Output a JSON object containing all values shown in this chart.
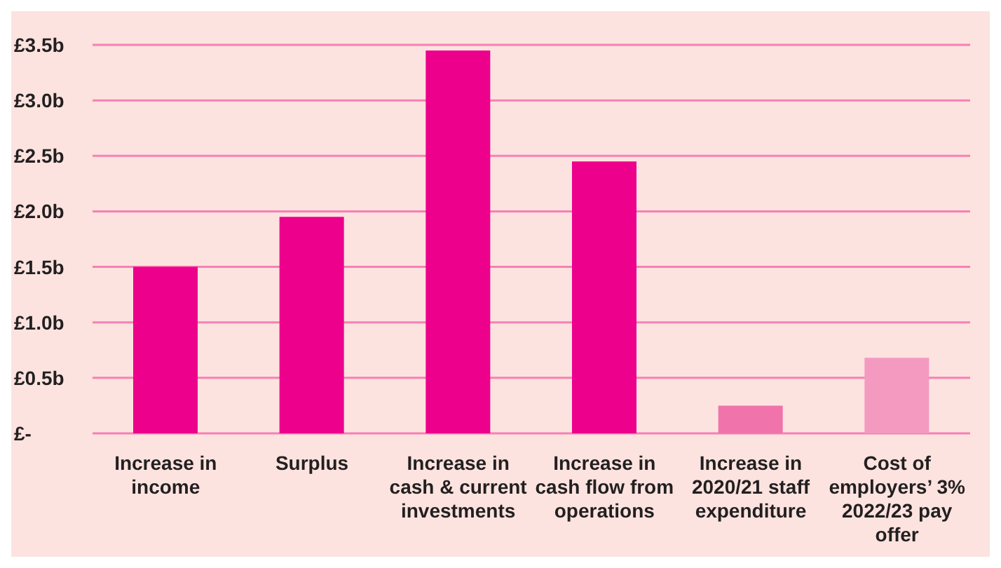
{
  "chart_data": {
    "type": "bar",
    "categories": [
      "Increase in income",
      "Surplus",
      "Increase in cash & current investments",
      "Increase in cash flow from operations",
      "Increase in 2020/21 staff expenditure",
      "Cost of employers’ 3% 2022/23 pay offer"
    ],
    "values": [
      1.5,
      1.95,
      3.45,
      2.45,
      0.25,
      0.68
    ],
    "colors": [
      "#ec008c",
      "#ec008c",
      "#ec008c",
      "#ec008c",
      "#f073ab",
      "#f49ac1"
    ],
    "ylim": [
      0,
      3.5
    ],
    "yticks": [
      {
        "value": 0,
        "label": "£-"
      },
      {
        "value": 0.5,
        "label": "£0.5b"
      },
      {
        "value": 1,
        "label": "£1.0b"
      },
      {
        "value": 1.5,
        "label": "£1.5b"
      },
      {
        "value": 2,
        "label": "£2.0b"
      },
      {
        "value": 2.5,
        "label": "£2.5b"
      },
      {
        "value": 3,
        "label": "£3.0b"
      },
      {
        "value": 3.5,
        "label": "£3.5b"
      }
    ],
    "grid": "y"
  }
}
